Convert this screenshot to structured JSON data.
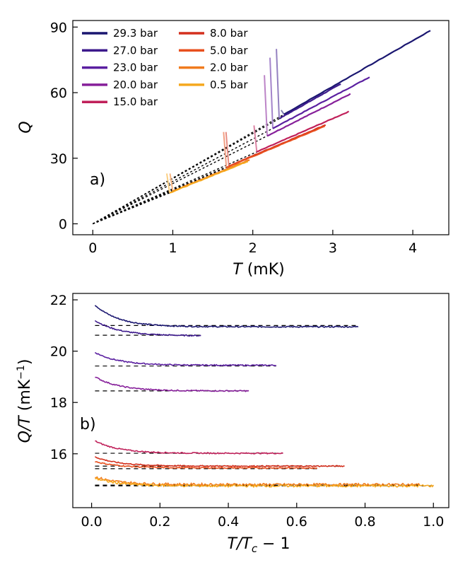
{
  "figure": {
    "panel_a_label": "a)",
    "panel_b_label": "b)"
  },
  "chart_data": [
    {
      "type": "line",
      "panel": "a)",
      "xlabel": "T (mK)",
      "ylabel": "Q",
      "xlim": [
        -0.25,
        4.45
      ],
      "ylim": [
        -5,
        93
      ],
      "xticks": [
        0,
        1,
        2,
        3,
        4
      ],
      "yticks": [
        0,
        30,
        60,
        90
      ],
      "legend_placement": "top-left",
      "legend_columns": 2,
      "series": [
        {
          "name": "29.3 bar",
          "color": "#1a1670",
          "tc": 2.39,
          "slope": 20.95,
          "jump_top": 52,
          "tmax": 4.22
        },
        {
          "name": "27.0 bar",
          "color": "#3d1a8c",
          "tc": 2.33,
          "slope": 20.65,
          "jump_top": 80,
          "tmax": 3.1
        },
        {
          "name": "23.0 bar",
          "color": "#5a1fa0",
          "tc": 2.25,
          "slope": 19.4,
          "jump_top": 76,
          "tmax": 3.46
        },
        {
          "name": "20.0 bar",
          "color": "#861f9a",
          "tc": 2.18,
          "slope": 18.45,
          "jump_top": 68,
          "tmax": 3.22
        },
        {
          "name": "15.0 bar",
          "color": "#c0205a",
          "tc": 2.05,
          "slope": 16.05,
          "jump_top": 45,
          "tmax": 3.2
        },
        {
          "name": "8.0 bar",
          "color": "#d4301e",
          "tc": 1.7,
          "slope": 15.55,
          "jump_top": 42,
          "tmax": 2.91
        },
        {
          "name": "5.0 bar",
          "color": "#e8501e",
          "tc": 1.67,
          "slope": 15.4,
          "jump_top": 42,
          "tmax": 2.9
        },
        {
          "name": "2.0 bar",
          "color": "#f07b1e",
          "tc": 1.0,
          "slope": 14.95,
          "jump_top": 23,
          "tmax": 1.96
        },
        {
          "name": "0.5 bar",
          "color": "#f5a81e",
          "tc": 0.96,
          "slope": 14.75,
          "jump_top": 23,
          "tmax": 1.94
        }
      ]
    },
    {
      "type": "line",
      "panel": "b)",
      "xlabel": "T/Tc - 1",
      "ylabel": "Q/T (mK^-1)",
      "xlim": [
        -0.055,
        1.045
      ],
      "ylim": [
        13.9,
        22.25
      ],
      "xticks": [
        0.0,
        0.2,
        0.4,
        0.6,
        0.8,
        1.0
      ],
      "yticks": [
        16,
        18,
        20,
        22
      ],
      "series": [
        {
          "name": "29.3 bar",
          "color": "#1a1670",
          "start": 21.8,
          "plateau": 20.95,
          "xmax": 0.78,
          "ref": 21.0
        },
        {
          "name": "27.0 bar",
          "color": "#3d1a8c",
          "start": 21.2,
          "plateau": 20.6,
          "xmax": 0.32,
          "ref": 20.62
        },
        {
          "name": "23.0 bar",
          "color": "#5a1fa0",
          "start": 19.95,
          "plateau": 19.45,
          "xmax": 0.54,
          "ref": 19.42
        },
        {
          "name": "20.0 bar",
          "color": "#861f9a",
          "start": 19.0,
          "plateau": 18.45,
          "xmax": 0.46,
          "ref": 18.45
        },
        {
          "name": "15.0 bar",
          "color": "#c0205a",
          "start": 16.5,
          "plateau": 16.02,
          "xmax": 0.56,
          "ref": 16.02
        },
        {
          "name": "8.0 bar",
          "color": "#d4301e",
          "start": 15.88,
          "plateau": 15.52,
          "xmax": 0.74,
          "ref": 15.52
        },
        {
          "name": "5.0 bar",
          "color": "#e8501e",
          "start": 15.7,
          "plateau": 15.45,
          "xmax": 0.66,
          "ref": 15.42
        },
        {
          "name": "2.0 bar",
          "color": "#f07b1e",
          "start": 15.1,
          "plateau": 14.8,
          "xmax": 0.96,
          "ref": 14.78
        },
        {
          "name": "0.5 bar",
          "color": "#f5a81e",
          "start": 15.05,
          "plateau": 14.75,
          "xmax": 1.0,
          "ref": 14.75
        }
      ]
    }
  ]
}
